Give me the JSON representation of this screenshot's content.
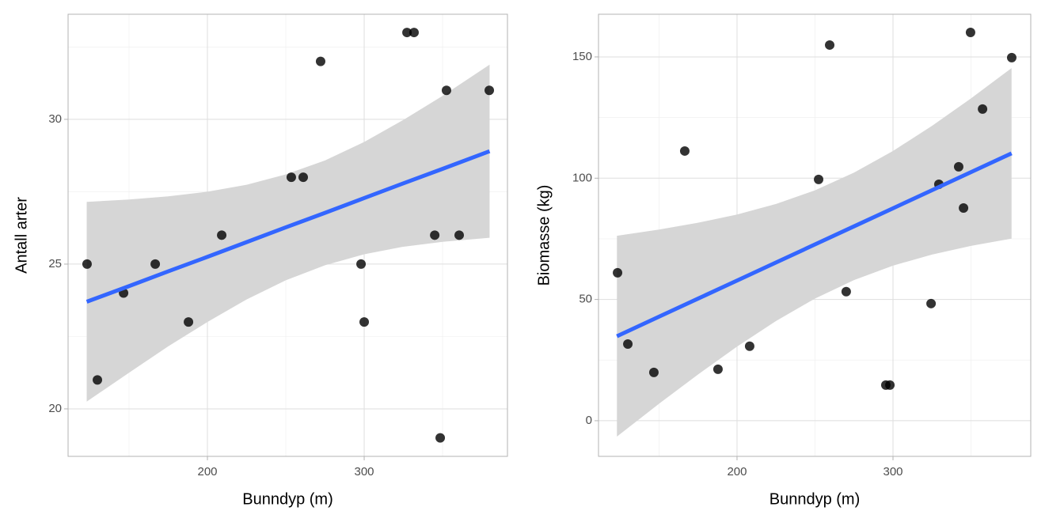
{
  "chart_data": [
    {
      "type": "scatter",
      "x_label": "Bunndyp (m)",
      "y_label": "Antall arter",
      "x": [
        123.2,
        129.8,
        146.5,
        166.7,
        187.9,
        209.1,
        253.5,
        261.1,
        272.2,
        298.0,
        300.0,
        327.3,
        331.8,
        345.0,
        348.5,
        352.5,
        360.6,
        379.8
      ],
      "y": [
        25,
        21,
        24,
        25,
        23,
        26,
        28,
        28,
        32,
        25,
        23,
        33,
        33,
        26,
        19,
        31,
        26,
        31
      ],
      "point_color": "#000000",
      "point_alpha": 0.8,
      "fit": {
        "x": [
          123,
          150,
          175,
          200,
          225,
          250,
          275,
          300,
          325,
          350,
          380
        ],
        "y": [
          23.7,
          24.24,
          24.75,
          25.25,
          25.76,
          26.27,
          26.77,
          27.28,
          27.79,
          28.29,
          28.9
        ],
        "lower": [
          20.25,
          21.25,
          22.16,
          23.0,
          23.78,
          24.44,
          24.96,
          25.34,
          25.6,
          25.77,
          25.91
        ],
        "upper": [
          27.15,
          27.23,
          27.34,
          27.5,
          27.74,
          28.1,
          28.58,
          29.22,
          29.98,
          30.81,
          31.89
        ],
        "color": "#3366ff",
        "band_color": "#d6d6d6"
      },
      "xlim": [
        111.1,
        391.4
      ],
      "ylim": [
        18.36,
        33.63
      ],
      "xticks": [
        200,
        300
      ],
      "yticks": [
        20,
        25,
        30
      ],
      "xminor": [
        150,
        250,
        350
      ],
      "yminor": [
        22.5,
        27.5,
        32.5
      ],
      "grid": true
    },
    {
      "type": "scatter",
      "x_label": "Bunndyp (m)",
      "y_label": "Biomasse (kg)",
      "x": [
        123.4,
        130.0,
        146.7,
        166.5,
        187.8,
        208.1,
        252.3,
        259.4,
        270.0,
        295.4,
        298.0,
        324.4,
        329.4,
        342.1,
        345.2,
        349.7,
        357.4,
        376.1
      ],
      "y": [
        61,
        31.6,
        19.9,
        111.2,
        21.2,
        30.7,
        99.5,
        154.9,
        53.2,
        14.7,
        14.7,
        48.3,
        97.5,
        104.7,
        87.7,
        160.1,
        128.5,
        149.7
      ],
      "point_color": "#000000",
      "point_alpha": 0.8,
      "fit": {
        "x": [
          123,
          150,
          175,
          200,
          225,
          250,
          275,
          300,
          325,
          350,
          376
        ],
        "y": [
          34.84,
          42.9,
          50.34,
          57.79,
          65.24,
          72.69,
          80.14,
          87.59,
          95.04,
          102.49,
          110.24
        ],
        "lower": [
          -6.56,
          7.0,
          19.07,
          30.55,
          41.12,
          50.38,
          58.0,
          63.95,
          68.51,
          72.08,
          75.09
        ],
        "upper": [
          76.24,
          78.8,
          81.61,
          85.03,
          89.36,
          95.0,
          102.28,
          111.23,
          121.57,
          132.9,
          145.39
        ],
        "color": "#3366ff",
        "band_color": "#d6d6d6"
      },
      "xlim": [
        111.2,
        388.3
      ],
      "ylim": [
        -14.7,
        167.6
      ],
      "xticks": [
        200,
        300
      ],
      "yticks": [
        0,
        50,
        100,
        150
      ],
      "xminor": [
        150,
        250,
        350
      ],
      "yminor": [
        25,
        75,
        125
      ],
      "grid": true
    }
  ]
}
